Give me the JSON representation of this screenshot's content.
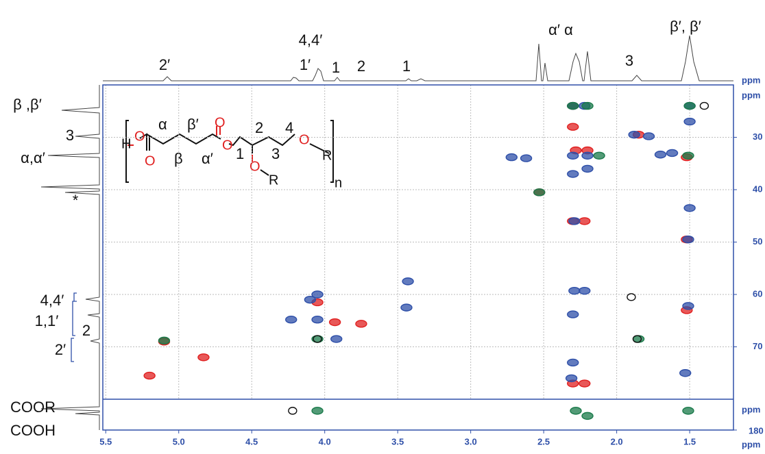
{
  "chart_data": {
    "type": "scatter",
    "xlabel": "ppm",
    "ylabel": "ppm",
    "trace_label": "ppm",
    "xlim": [
      5.52,
      1.2
    ],
    "xticks": [
      5.5,
      {
        "value": 5,
        "label": "5.0"
      },
      4.5,
      {
        "value": 4,
        "label": "4.0"
      },
      3.5,
      {
        "value": 3,
        "label": "3.0"
      },
      2.5,
      {
        "value": 2,
        "label": "2.0"
      },
      1.5
    ],
    "ylim": [
      20,
      80
    ],
    "yticks": [
      30,
      40,
      50,
      60,
      70
    ],
    "grid": true,
    "series": [
      {
        "color": "#e02020",
        "x": [
          2.3,
          2.3,
          1.85,
          2.28,
          2.2,
          2.53,
          2.3,
          2.22,
          1.52,
          4.05,
          3.93,
          3.75,
          5.1,
          4.83,
          5.2,
          1.52,
          2.3,
          2.22,
          1.52
        ],
        "y": [
          24,
          28,
          29.5,
          32.5,
          32.5,
          40.5,
          46,
          46,
          49.5,
          61.5,
          65.3,
          65.6,
          69,
          72,
          75.5,
          33.8,
          77,
          77,
          63
        ]
      },
      {
        "color": "#2e4fa8",
        "x": [
          2.3,
          2.22,
          1.5,
          1.5,
          1.88,
          1.78,
          2.3,
          2.2,
          1.62,
          1.7,
          2.72,
          2.62,
          2.3,
          2.2,
          1.5,
          2.29,
          1.51,
          3.43,
          4.05,
          4.1,
          2.29,
          2.22,
          3.44,
          1.51,
          4.23,
          4.05,
          2.3,
          3.92,
          2.3,
          1.53,
          2.31
        ],
        "y": [
          24,
          24,
          24,
          27,
          29.5,
          29.8,
          33.5,
          33.5,
          33,
          33.3,
          33.8,
          34,
          37,
          36,
          43.5,
          46,
          49.5,
          57.5,
          60,
          61,
          59.3,
          59.3,
          62.5,
          62.2,
          64.8,
          64.8,
          63.8,
          68.5,
          73,
          75,
          76
        ]
      },
      {
        "color": "#1a7a4a",
        "x": [
          2.3,
          2.2,
          1.5,
          2.53,
          2.12,
          4.05,
          1.51,
          1.85,
          5.1
        ],
        "y": [
          24,
          24,
          24,
          40.5,
          33.5,
          68.5,
          33.5,
          68.5,
          68.8
        ]
      },
      {
        "color": "#111111",
        "x": [
          1.4,
          1.9,
          1.86,
          4.05
        ],
        "y": [
          24,
          60.5,
          68.5,
          68.5
        ]
      }
    ],
    "lower_panel": {
      "ylabel": "ppm",
      "ylim": [
        168,
        180
      ],
      "yticks": [
        180
      ],
      "series": [
        {
          "color": "#1a7a4a",
          "x": [
            4.05,
            2.28,
            2.2,
            1.51
          ],
          "y": [
            172.5,
            172.5,
            174.5,
            172.5
          ]
        },
        {
          "color": "#111111",
          "x": [
            4.22
          ],
          "y": [
            172.5
          ]
        }
      ]
    },
    "top_labels": [
      "2′",
      "4,4′",
      "1′",
      "1",
      "2",
      "1",
      "α′ α",
      "3",
      "β′, β′"
    ],
    "left_labels": [
      "β ,β′",
      "3",
      "α,α′",
      "*",
      "4,4′",
      "1,1′",
      "2",
      "2′",
      "COOR",
      "COOH"
    ],
    "structure": {
      "atoms": [
        "H",
        "O",
        "O",
        "O",
        "O",
        "O",
        "O",
        "R",
        "R"
      ],
      "positions": [
        "α",
        "β′",
        "β",
        "α′",
        "2",
        "1",
        "3",
        "4"
      ],
      "repeat": "n"
    }
  }
}
